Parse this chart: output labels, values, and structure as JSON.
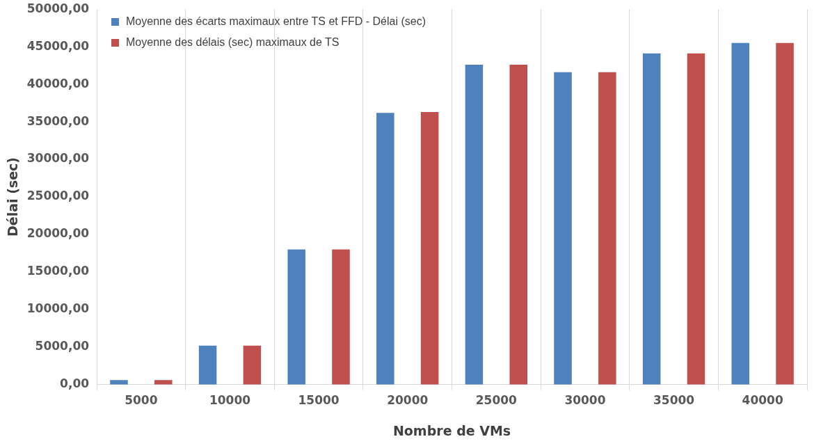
{
  "chart_data": {
    "type": "bar",
    "xlabel": "Nombre de VMs",
    "ylabel": "Délai (sec)",
    "categories": [
      "5000",
      "10000",
      "15000",
      "20000",
      "25000",
      "30000",
      "35000",
      "40000"
    ],
    "series": [
      {
        "name": "Moyenne des écarts maximaux entre TS et FFD - Délai (sec)",
        "color": "#4f81bd",
        "values": [
          600,
          5200,
          18000,
          36200,
          42600,
          41600,
          44100,
          45500
        ]
      },
      {
        "name": "Moyenne des délais (sec) maximaux de TS",
        "color": "#c0504d",
        "values": [
          600,
          5200,
          18000,
          36300,
          42600,
          41600,
          44100,
          45500
        ]
      }
    ],
    "ylim": [
      0,
      50000
    ],
    "yticks": [
      {
        "value": 0,
        "label": "0,00"
      },
      {
        "value": 5000,
        "label": "5000,00"
      },
      {
        "value": 10000,
        "label": "10000,00"
      },
      {
        "value": 15000,
        "label": "15000,00"
      },
      {
        "value": 20000,
        "label": "20000,00"
      },
      {
        "value": 25000,
        "label": "25000,00"
      },
      {
        "value": 30000,
        "label": "30000,00"
      },
      {
        "value": 35000,
        "label": "35000,00"
      },
      {
        "value": 40000,
        "label": "40000,00"
      },
      {
        "value": 45000,
        "label": "45000,00"
      },
      {
        "value": 50000,
        "label": "50000,00"
      }
    ],
    "grid": "x",
    "legend": "top left"
  }
}
